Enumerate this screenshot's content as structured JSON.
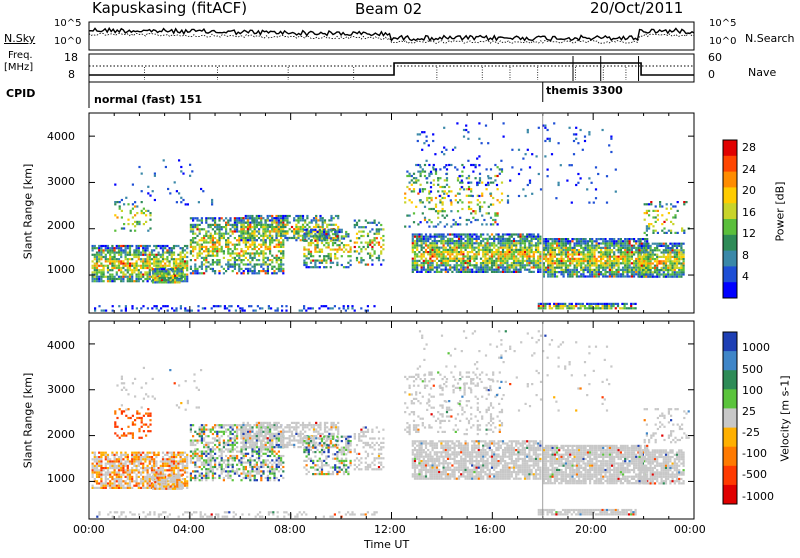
{
  "header": {
    "station": "Kapuskasing (fitACF)",
    "beam": "Beam 02",
    "date": "20/Oct/2011"
  },
  "status_panels": {
    "nsky_label": "N.Sky",
    "nsky_ticks": [
      "10^5",
      "10^0"
    ],
    "nsearch_label": "N.Search",
    "nsearch_ticks": [
      "10^5",
      "10^0"
    ],
    "freq_label_1": "Freq.",
    "freq_label_2": "[MHz]",
    "freq_ticks": [
      "18",
      "8"
    ],
    "nave_label": "Nave",
    "nave_ticks": [
      "60",
      "0"
    ],
    "cpid_label": "CPID",
    "cpid_modes": [
      {
        "name": "normal (fast) 151",
        "start_hour": 0
      },
      {
        "name": "themis 3300",
        "start_hour": 18
      }
    ]
  },
  "chart_data": [
    {
      "type": "heatmap",
      "title": "",
      "xlabel": "Time UT",
      "ylabel": "Slant Range [km]",
      "xlim": [
        0,
        24
      ],
      "ylim": [
        180,
        4500
      ],
      "y_ticks": [
        "1000",
        "2000",
        "3000",
        "4000"
      ],
      "colorbar": {
        "label": "Power [dB]",
        "range": [
          0,
          32
        ],
        "ticks": [
          "4",
          "8",
          "12",
          "16",
          "20",
          "24",
          "28"
        ],
        "colors": [
          "#0000ff",
          "#1e4fd6",
          "#3a88a8",
          "#2e8b57",
          "#5bbf3c",
          "#c8d42a",
          "#ffcc00",
          "#ff8c00",
          "#ff4500",
          "#e00000"
        ]
      }
    },
    {
      "type": "heatmap",
      "title": "",
      "xlabel": "Time UT",
      "ylabel": "Slant Range [km]",
      "xlim": [
        0,
        24
      ],
      "ylim": [
        180,
        4500
      ],
      "y_ticks": [
        "1000",
        "2000",
        "3000",
        "4000"
      ],
      "colorbar": {
        "label": "Velocity [m s-1]",
        "ticks": [
          "1000",
          "500",
          "100",
          "25",
          "-25",
          "-100",
          "-500",
          "-1000"
        ],
        "colors": [
          "#1e3fb4",
          "#3f86c8",
          "#2e8b57",
          "#5bc43c",
          "#c8c8c8",
          "#ffb000",
          "#ff7a00",
          "#ff3a00",
          "#e00000"
        ]
      }
    }
  ],
  "time_axis": {
    "ticks": [
      "00:00",
      "04:00",
      "08:00",
      "12:00",
      "16:00",
      "20:00",
      "00:00"
    ],
    "label": "Time UT"
  }
}
